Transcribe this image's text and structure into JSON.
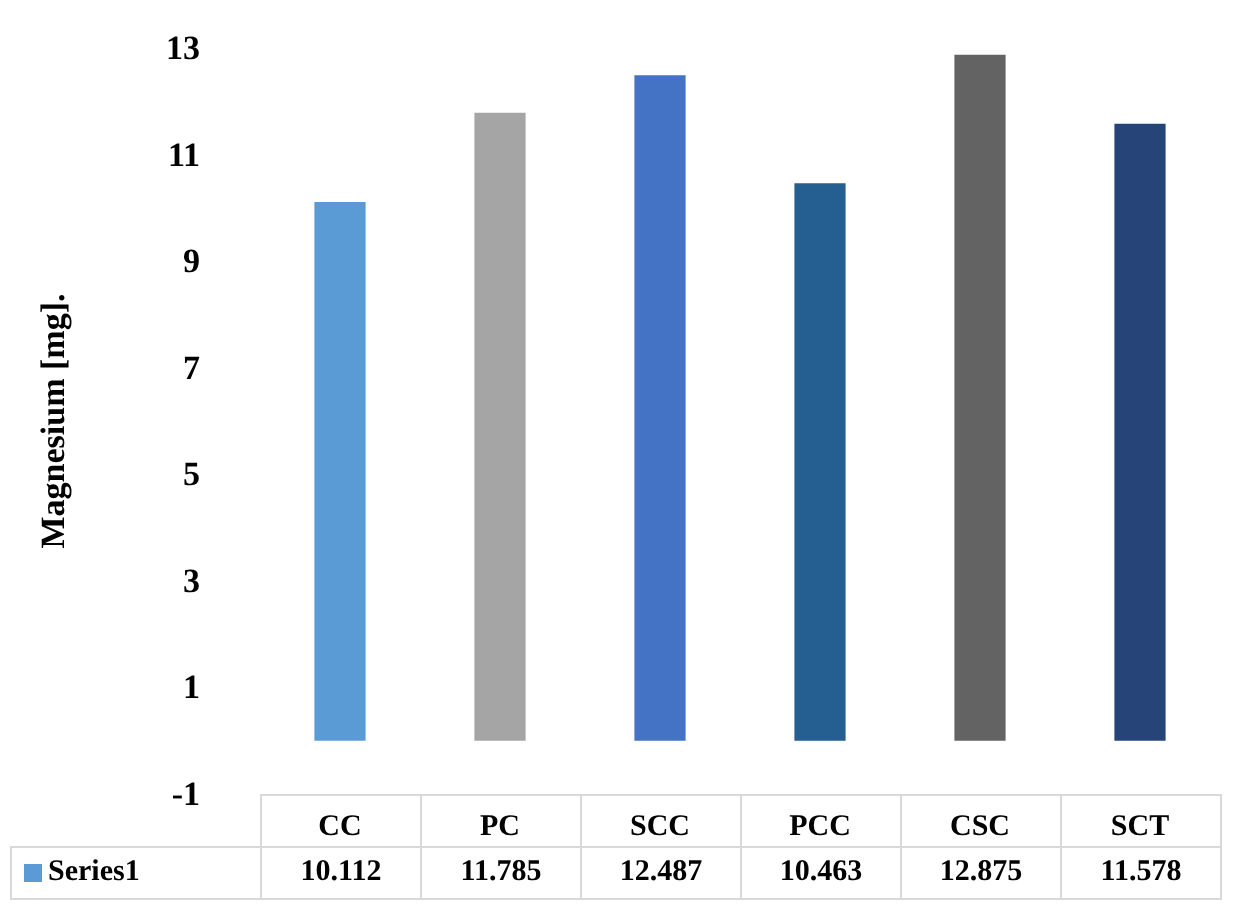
{
  "chart_data": {
    "type": "bar",
    "ylabel": "Magnesium [mg].",
    "categories": [
      "CC",
      "PC",
      "SCC",
      "PCC",
      "CSC",
      "SCT"
    ],
    "series": [
      {
        "name": "Series1",
        "colors": [
          "#5b9bd5",
          "#a5a5a5",
          "#4472c4",
          "#255e91",
          "#636363",
          "#264478"
        ],
        "values": [
          10.112,
          11.785,
          12.487,
          10.463,
          12.875,
          11.578
        ]
      }
    ],
    "ylim": [
      -1,
      13
    ],
    "yticks": [
      -1,
      1,
      3,
      5,
      7,
      9,
      11,
      13
    ],
    "grid": false,
    "legend": "bottom",
    "data_labels": true
  }
}
